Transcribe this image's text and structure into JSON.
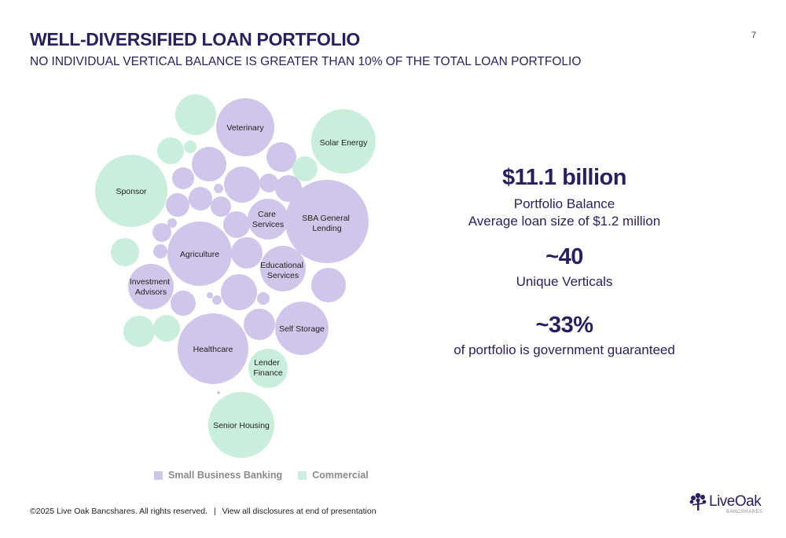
{
  "header": {
    "title": "WELL-DIVERSIFIED LOAN PORTFOLIO",
    "subtitle": "NO INDIVIDUAL VERTICAL BALANCE IS GREATER THAN 10% OF THE TOTAL LOAN PORTFOLIO",
    "page_number": "7"
  },
  "colors": {
    "small_business_banking": "#cfc6e9",
    "commercial": "#c9eedb",
    "brand_navy": "#2a1f5c"
  },
  "legend": [
    {
      "label": "Small Business Banking",
      "color": "#cfc6e9"
    },
    {
      "label": "Commercial",
      "color": "#c9eedb"
    }
  ],
  "bubble_labels": {
    "veterinary": "Veterinary",
    "solar_energy": "Solar Energy",
    "sponsor": "Sponsor",
    "care_services": "Care Services",
    "sba_general_lending": "SBA General Lending",
    "agriculture": "Agriculture",
    "educational_services": "Educational Services",
    "investment_advisors": "Investment Advisors",
    "self_storage": "Self Storage",
    "healthcare": "Healthcare",
    "lender_finance": "Lender Finance",
    "senior_housing": "Senior Housing"
  },
  "stats": {
    "balance_value": "$11.1 billion",
    "balance_label": "Portfolio Balance",
    "average_loan": "Average loan size of $1.2 million",
    "verticals_value": "~40",
    "verticals_label": "Unique Verticals",
    "guaranteed_value": "~33%",
    "guaranteed_label": "of portfolio is government guaranteed"
  },
  "footer": {
    "copyright": "©2025 Live Oak Bancshares. All rights reserved.",
    "separator": "|",
    "disclosure": "View all disclosures at end of presentation"
  },
  "logo": {
    "name": "LiveOak",
    "tagline": "BANCSHARES",
    "icon": "oak-tree-icon"
  }
}
